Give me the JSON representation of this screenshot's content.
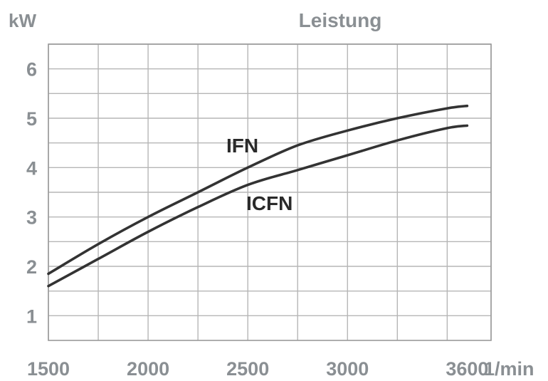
{
  "chart_data": {
    "type": "line",
    "title": "Leistung",
    "ylabel": "kW",
    "xlabel": "1/min",
    "xlim": [
      1500,
      3720
    ],
    "ylim": [
      0.5,
      6.5
    ],
    "grid": true,
    "x_grid": [
      1500,
      1750,
      2000,
      2250,
      2500,
      2750,
      3000,
      3250,
      3500,
      3720
    ],
    "y_grid": [
      1,
      1.5,
      2,
      2.5,
      3,
      3.5,
      4,
      4.5,
      5,
      5.5,
      6,
      6.5
    ],
    "x_ticks": [
      1500,
      2000,
      2500,
      3000,
      3600
    ],
    "x_tick_labels": [
      "1500",
      "2000",
      "2500",
      "3000",
      "3600"
    ],
    "y_ticks": [
      1,
      2,
      3,
      4,
      5,
      6
    ],
    "y_tick_labels": [
      "1",
      "2",
      "3",
      "4",
      "5",
      "6"
    ],
    "series": [
      {
        "name": "IFN",
        "x": [
          1500,
          1750,
          2000,
          2250,
          2500,
          2750,
          3000,
          3250,
          3500,
          3600
        ],
        "values": [
          1.85,
          2.45,
          3.0,
          3.5,
          4.0,
          4.45,
          4.75,
          5.0,
          5.2,
          5.25
        ]
      },
      {
        "name": "ICFN",
        "x": [
          1500,
          1750,
          2000,
          2250,
          2500,
          2750,
          3000,
          3250,
          3500,
          3600
        ],
        "values": [
          1.6,
          2.15,
          2.7,
          3.2,
          3.65,
          3.95,
          4.25,
          4.55,
          4.8,
          4.85
        ]
      }
    ]
  }
}
